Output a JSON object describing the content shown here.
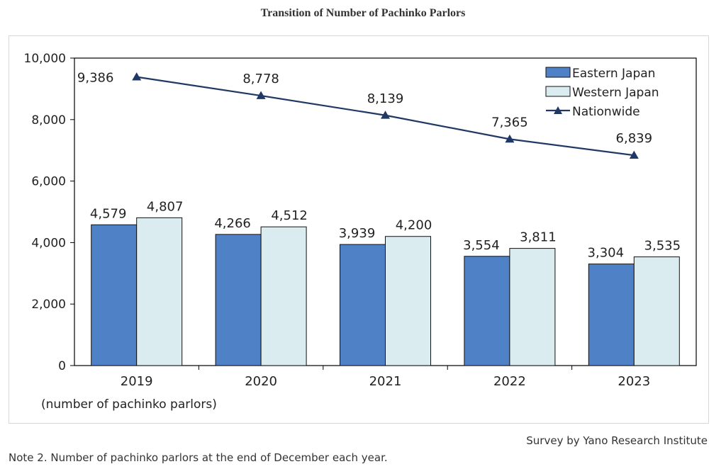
{
  "title": "Transition of Number of Pachinko Parlors",
  "source": "Survey by Yano Research Institute",
  "note": "Note 2.  Number of pachinko parlors at the end of December each year.",
  "chart_data": {
    "type": "bar",
    "categories": [
      "2019",
      "2020",
      "2021",
      "2022",
      "2023"
    ],
    "xlabel": "(number of pachinko parlors)",
    "ylabel": "",
    "ylim": [
      0,
      10000
    ],
    "yticks": [
      0,
      2000,
      4000,
      6000,
      8000,
      10000
    ],
    "ytick_labels": [
      "0",
      "2,000",
      "4,000",
      "6,000",
      "8,000",
      "10,000"
    ],
    "grid": false,
    "legend_position": "top-right",
    "series": [
      {
        "name": "Eastern Japan",
        "kind": "bar",
        "color": "#4f81c7",
        "values": [
          4579,
          4266,
          3939,
          3554,
          3304
        ],
        "labels": [
          "4,579",
          "4,266",
          "3,939",
          "3,554",
          "3,304"
        ]
      },
      {
        "name": "Western Japan",
        "kind": "bar",
        "color": "#dbecf1",
        "values": [
          4807,
          4512,
          4200,
          3811,
          3535
        ],
        "labels": [
          "4,807",
          "4,512",
          "4,200",
          "3,811",
          "3,535"
        ]
      },
      {
        "name": "Nationwide",
        "kind": "line",
        "color": "#1f3864",
        "values": [
          9386,
          8778,
          8139,
          7365,
          6839
        ],
        "labels": [
          "9,386",
          "8,778",
          "8,139",
          "7,365",
          "6,839"
        ]
      }
    ]
  }
}
